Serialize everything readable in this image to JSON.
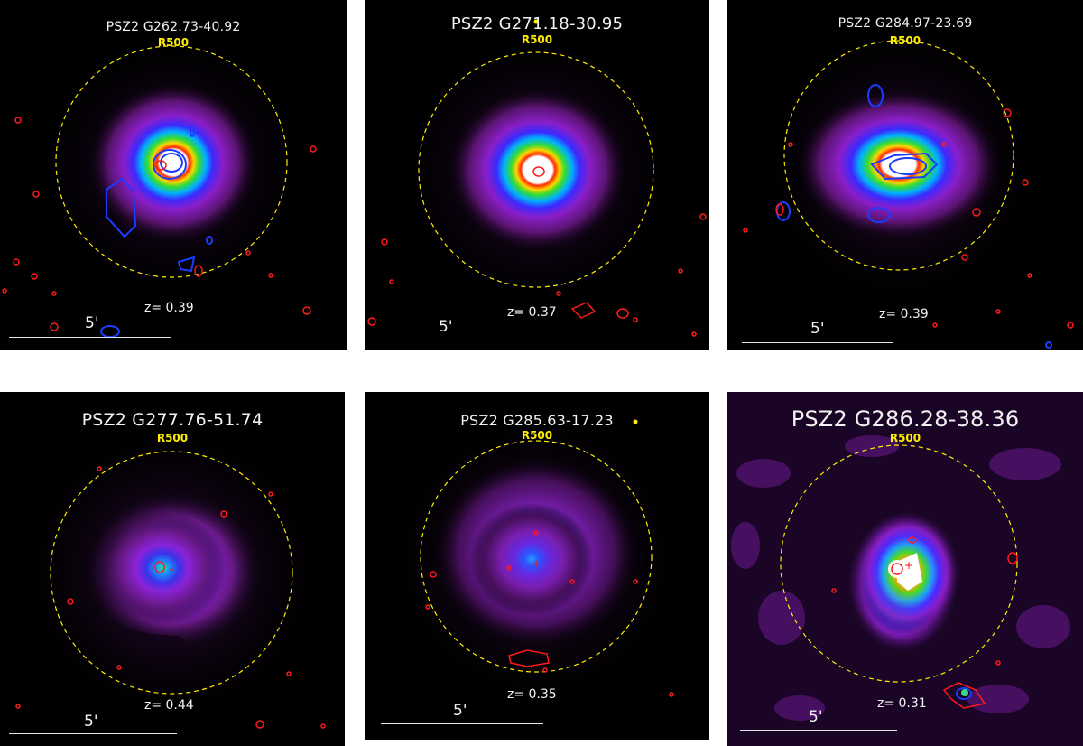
{
  "panels": [
    {
      "title": "PSZ2 G262.73-40.92",
      "radius_label": "R500",
      "redshift": "z= 0.39",
      "scale": "5'"
    },
    {
      "title": "PSZ2 G271.18-30.95",
      "radius_label": "R500",
      "redshift": "z= 0.37",
      "scale": "5'"
    },
    {
      "title": "PSZ2 G284.97-23.69",
      "radius_label": "R500",
      "redshift": "z= 0.39",
      "scale": "5'"
    },
    {
      "title": "PSZ2 G277.76-51.74",
      "radius_label": "R500",
      "redshift": "z= 0.44",
      "scale": "5'"
    },
    {
      "title": "PSZ2 G285.63-17.23",
      "radius_label": "R500",
      "redshift": "z= 0.35",
      "scale": "5'"
    },
    {
      "title": "PSZ2 G286.28-38.36",
      "radius_label": "R500",
      "redshift": "z= 0.31",
      "scale": "5'"
    }
  ],
  "colors": {
    "background": "#000000",
    "r500_circle": "#ffee00",
    "contour_red": "#ff1a1a",
    "contour_blue": "#1a3cff"
  }
}
